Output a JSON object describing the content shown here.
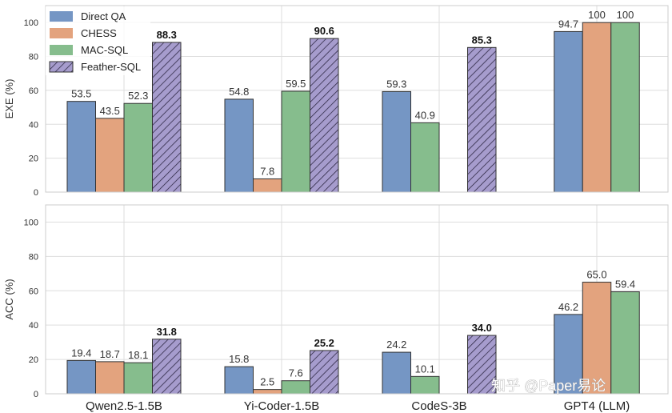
{
  "chart_data": [
    {
      "type": "bar",
      "categories": [
        "Qwen2.5-1.5B",
        "Yi-Coder-1.5B",
        "CodeS-3B",
        "GPT4 (LLM)"
      ],
      "ylabel": "EXE (%)",
      "ylim": [
        0,
        110
      ],
      "yticks": [
        "0",
        "20",
        "40",
        "60",
        "80",
        "100"
      ],
      "grid": true,
      "legend": "top-left",
      "series": [
        {
          "name": "Direct QA",
          "color": "#7596c4",
          "values": [
            53.5,
            54.8,
            59.3,
            94.7
          ],
          "labels": [
            "53.5",
            "54.8",
            "59.3",
            "94.7"
          ]
        },
        {
          "name": "CHESS",
          "color": "#e3a37e",
          "values": [
            43.5,
            7.8,
            null,
            100
          ],
          "labels": [
            "43.5",
            "7.8",
            "",
            "100"
          ]
        },
        {
          "name": "MAC-SQL",
          "color": "#86bd8d",
          "values": [
            52.3,
            59.5,
            40.9,
            100
          ],
          "labels": [
            "52.3",
            "59.5",
            "40.9",
            "100"
          ]
        },
        {
          "name": "Feather-SQL",
          "color": "#a69ccd",
          "hatch": true,
          "values": [
            88.3,
            90.6,
            85.3,
            null
          ],
          "labels": [
            "88.3",
            "90.6",
            "85.3",
            ""
          ]
        }
      ]
    },
    {
      "type": "bar",
      "categories": [
        "Qwen2.5-1.5B",
        "Yi-Coder-1.5B",
        "CodeS-3B",
        "GPT4 (LLM)"
      ],
      "ylabel": "ACC (%)",
      "ylim": [
        0,
        110
      ],
      "yticks": [
        "0",
        "20",
        "40",
        "60",
        "80",
        "100"
      ],
      "grid": true,
      "series": [
        {
          "name": "Direct QA",
          "color": "#7596c4",
          "values": [
            19.4,
            15.8,
            24.2,
            46.2
          ],
          "labels": [
            "19.4",
            "15.8",
            "24.2",
            "46.2"
          ]
        },
        {
          "name": "CHESS",
          "color": "#e3a37e",
          "values": [
            18.7,
            2.5,
            null,
            65.0
          ],
          "labels": [
            "18.7",
            "2.5",
            "",
            "65.0"
          ]
        },
        {
          "name": "MAC-SQL",
          "color": "#86bd8d",
          "values": [
            18.1,
            7.6,
            10.1,
            59.4
          ],
          "labels": [
            "18.1",
            "7.6",
            "10.1",
            "59.4"
          ]
        },
        {
          "name": "Feather-SQL",
          "color": "#a69ccd",
          "hatch": true,
          "values": [
            31.8,
            25.2,
            34.0,
            null
          ],
          "labels": [
            "31.8",
            "25.2",
            "34.0",
            ""
          ]
        }
      ]
    }
  ],
  "bar_order": [
    [
      [
        0,
        1,
        2,
        3
      ],
      [
        0,
        1,
        2,
        3
      ],
      [
        0,
        2,
        1,
        3
      ],
      [
        0,
        1,
        2
      ]
    ],
    [
      [
        0,
        1,
        2,
        3
      ],
      [
        0,
        1,
        2,
        3
      ],
      [
        0,
        2,
        1,
        3
      ],
      [
        0,
        1,
        2
      ]
    ]
  ],
  "watermark": "知乎 @Paper易论"
}
